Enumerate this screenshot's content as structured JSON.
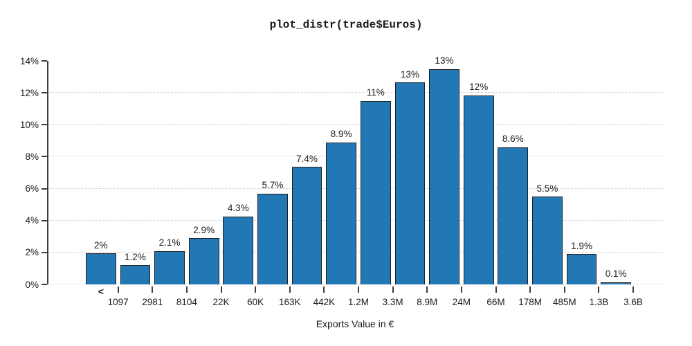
{
  "title": "plot_distr(trade$Euros)",
  "xlabel": "Exports Value in €",
  "colors": {
    "bar_fill": "#2277b5",
    "bar_border": "#1f1f1f",
    "gridline": "#c9c9c9",
    "axis": "#3d3d3d",
    "text": "#1a1a1a",
    "background": "#ffffff"
  },
  "y_axis": {
    "values": [
      0,
      2,
      4,
      6,
      8,
      10,
      12,
      14
    ],
    "tick_labels": [
      "0%",
      "2%",
      "4%",
      "6%",
      "8%",
      "10%",
      "12%",
      "14%"
    ],
    "gridline_values": [
      0,
      2,
      4,
      6,
      8,
      10,
      12
    ]
  },
  "chart_data": {
    "type": "bar",
    "title": "plot_distr(trade$Euros)",
    "xlabel": "Exports Value in €",
    "ylabel": "",
    "ylim": [
      0,
      14
    ],
    "y_unit": "%",
    "x_scale": "logarithmic bins (right-edge labels)",
    "grid": "dotted horizontal gridlines every 2%, none at 14%",
    "legend": "none",
    "first_bin_label": "<",
    "bin_right_edges": [
      "1097",
      "2981",
      "8104",
      "22K",
      "60K",
      "163K",
      "442K",
      "1.2M",
      "3.3M",
      "8.9M",
      "24M",
      "66M",
      "178M",
      "485M",
      "1.3B",
      "3.6B"
    ],
    "bar_labels": [
      "2%",
      "1.2%",
      "2.1%",
      "2.9%",
      "4.3%",
      "5.7%",
      "7.4%",
      "8.9%",
      "11%",
      "13%",
      "13%",
      "12%",
      "8.6%",
      "5.5%",
      "1.9%",
      "0.1%"
    ],
    "values": [
      1.95,
      1.2,
      2.1,
      2.9,
      4.25,
      5.7,
      7.35,
      8.9,
      11.5,
      12.65,
      13.5,
      11.85,
      8.6,
      5.5,
      1.9,
      0.15
    ]
  }
}
